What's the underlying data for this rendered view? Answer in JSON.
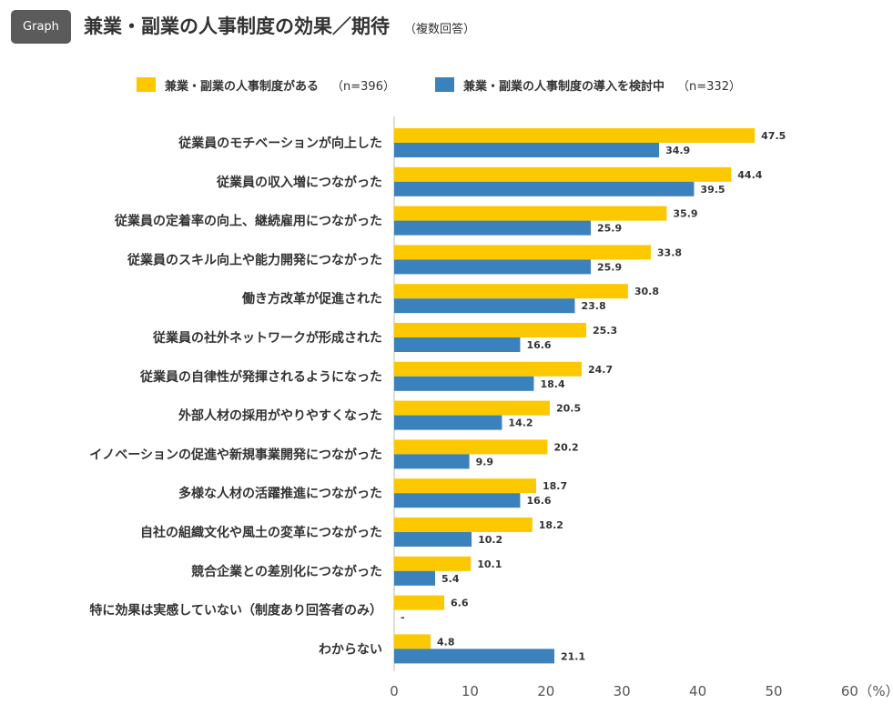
{
  "header": {
    "badge": "Graph",
    "title": "兼業・副業の人事制度の効果／期待",
    "note": "（複数回答）"
  },
  "colors": {
    "series1": "#FCC800",
    "series2": "#3B82BD",
    "badge": "#5B5B5B"
  },
  "chart_data": {
    "type": "bar",
    "orientation": "horizontal",
    "categories": [
      "従業員のモチベーションが向上した",
      "従業員の収入増につながった",
      "従業員の定着率の向上、継続雇用につながった",
      "従業員のスキル向上や能力開発につながった",
      "働き方改革が促進された",
      "従業員の社外ネットワークが形成された",
      "従業員の自律性が発揮されるようになった",
      "外部人材の採用がやりやすくなった",
      "イノベーションの促進や新規事業開発につながった",
      "多様な人材の活躍推進につながった",
      "自社の組織文化や風土の変革につながった",
      "競合企業との差別化につながった",
      "特に効果は実感していない（制度あり回答者のみ）",
      "わからない"
    ],
    "series": [
      {
        "name": "兼業・副業の人事制度がある",
        "n": "（n=396）",
        "values": [
          47.5,
          44.4,
          35.9,
          33.8,
          30.8,
          25.3,
          24.7,
          20.5,
          20.2,
          18.7,
          18.2,
          10.1,
          6.6,
          4.8
        ],
        "labels": [
          "47.5",
          "44.4",
          "35.9",
          "33.8",
          "30.8",
          "25.3",
          "24.7",
          "20.5",
          "20.2",
          "18.7",
          "18.2",
          "10.1",
          "6.6",
          "4.8"
        ]
      },
      {
        "name": "兼業・副業の人事制度の導入を検討中",
        "n": "（n=332）",
        "values": [
          34.9,
          39.5,
          25.9,
          25.9,
          23.8,
          16.6,
          18.4,
          14.2,
          9.9,
          16.6,
          10.2,
          5.4,
          null,
          21.1
        ],
        "labels": [
          "34.9",
          "39.5",
          "25.9",
          "25.9",
          "23.8",
          "16.6",
          "18.4",
          "14.2",
          "9.9",
          "16.6",
          "10.2",
          "5.4",
          "-",
          "21.1"
        ]
      }
    ],
    "xlim": [
      0,
      60
    ],
    "xticks": [
      "0",
      "10",
      "20",
      "30",
      "40",
      "50",
      "60"
    ],
    "xunit": "（%）",
    "grid": false
  }
}
